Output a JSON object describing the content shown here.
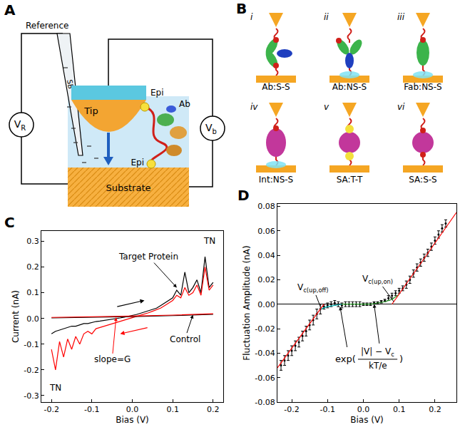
{
  "panel_a": {
    "letter": "A",
    "labels": {
      "reference": "Reference",
      "salt_bridge": "SB",
      "tip": "Tip",
      "epitope_tip": "Epi",
      "antibody": "Ab",
      "epitope_substrate": "Epi",
      "substrate": "Substrate"
    },
    "meters": [
      {
        "symbol": "V",
        "sub": "R"
      },
      {
        "symbol": "V",
        "sub": "b"
      }
    ]
  },
  "panel_b": {
    "letter": "B",
    "items": [
      {
        "numeral": "i",
        "label": "Ab:S-S"
      },
      {
        "numeral": "ii",
        "label": "Ab:NS-S"
      },
      {
        "numeral": "iii",
        "label": "Fab:NS-S"
      },
      {
        "numeral": "iv",
        "label": "Int:NS-S"
      },
      {
        "numeral": "v",
        "label": "SA:T-T"
      },
      {
        "numeral": "vi",
        "label": "SA:S-S"
      }
    ]
  },
  "chart_data": [
    {
      "letter": "C",
      "type": "line",
      "x_label": "Bias (V)",
      "y_label": "Current (nA)",
      "xlim": [
        -0.225,
        0.225
      ],
      "ylim": [
        -0.325,
        0.34
      ],
      "xticks": [
        -0.2,
        -0.1,
        {
          "value": 0,
          "label": "0.0"
        },
        0.1,
        0.2
      ],
      "yticks": [
        -0.3,
        -0.2,
        -0.1,
        {
          "value": 0,
          "label": "0.0"
        },
        0.1,
        0.2,
        0.3
      ],
      "grid": false,
      "annotations": [
        "Target Protein",
        "TN",
        "TN",
        "Control",
        "slope=G"
      ],
      "series": [
        {
          "color": "#000000",
          "line_style": "solid",
          "x": [
            -0.2,
            -0.19,
            -0.18,
            -0.17,
            -0.16,
            -0.15,
            -0.14,
            -0.13,
            -0.12,
            -0.11,
            -0.1,
            -0.09,
            -0.08,
            -0.07,
            -0.06,
            -0.05,
            -0.04,
            -0.03,
            -0.02,
            -0.01,
            0,
            0.01,
            0.02,
            0.03,
            0.04,
            0.05,
            0.06,
            0.07,
            0.08,
            0.09,
            0.1,
            0.11,
            0.12,
            0.13,
            0.14,
            0.15,
            0.16,
            0.17,
            0.18,
            0.19,
            0.2
          ],
          "values": [
            -0.06,
            -0.05,
            -0.045,
            -0.04,
            -0.035,
            -0.03,
            -0.03,
            -0.025,
            -0.02,
            -0.02,
            -0.015,
            -0.012,
            -0.01,
            -0.008,
            -0.005,
            -0.003,
            0,
            0.002,
            0.005,
            0.008,
            0.01,
            0.015,
            0.02,
            0.025,
            0.03,
            0.035,
            0.04,
            0.05,
            0.06,
            0.07,
            0.08,
            0.11,
            0.09,
            0.18,
            0.1,
            0.12,
            0.15,
            0.1,
            0.24,
            0.12,
            0.14
          ]
        },
        {
          "color": "#ff0000",
          "line_style": "solid",
          "x": [
            -0.2,
            -0.19,
            -0.18,
            -0.17,
            -0.16,
            -0.15,
            -0.14,
            -0.13,
            -0.12,
            -0.11,
            -0.1,
            -0.09,
            -0.08,
            -0.07,
            -0.06,
            -0.05,
            -0.04,
            -0.03,
            -0.02,
            -0.01,
            0,
            0.01,
            0.02,
            0.03,
            0.04,
            0.05,
            0.06,
            0.07,
            0.08,
            0.09,
            0.1,
            0.11,
            0.12,
            0.13,
            0.14,
            0.15,
            0.16,
            0.17,
            0.18,
            0.19,
            0.2
          ],
          "values": [
            -0.12,
            -0.2,
            -0.09,
            -0.15,
            -0.08,
            -0.12,
            -0.07,
            -0.1,
            -0.06,
            -0.05,
            -0.06,
            -0.04,
            -0.035,
            -0.03,
            -0.025,
            -0.02,
            -0.015,
            -0.01,
            -0.005,
            0,
            0.003,
            0.008,
            0.012,
            0.018,
            0.022,
            0.028,
            0.033,
            0.04,
            0.05,
            0.06,
            0.07,
            0.09,
            0.08,
            0.12,
            0.09,
            0.1,
            0.13,
            0.09,
            0.2,
            0.11,
            0.13
          ]
        },
        {
          "color": "#000000",
          "line_style": "solid",
          "x": [
            -0.2,
            -0.1,
            0,
            0.1,
            0.2
          ],
          "values": [
            0.002,
            0.004,
            0.007,
            0.011,
            0.016
          ]
        },
        {
          "color": "#ff0000",
          "line_style": "solid",
          "x": [
            -0.2,
            -0.1,
            0,
            0.1,
            0.2
          ],
          "values": [
            0.004,
            0.006,
            0.009,
            0.013,
            0.018
          ]
        }
      ]
    },
    {
      "letter": "D",
      "type": "scatter",
      "x_label": "Bias (V)",
      "y_label": "Fluctuation Amplitude (nA)",
      "xlim": [
        -0.24,
        0.26
      ],
      "ylim": [
        -0.08,
        0.082
      ],
      "xticks": [
        -0.2,
        -0.1,
        {
          "value": 0,
          "label": "0.0"
        },
        0.1,
        0.2
      ],
      "yticks": [
        -0.08,
        -0.06,
        -0.04,
        -0.02,
        {
          "value": 0,
          "label": "0.00"
        },
        0.02,
        0.04,
        0.06,
        0.08
      ],
      "grid": false,
      "annotations": [
        {
          "symbol": "V",
          "sub": "c(up,off)"
        },
        {
          "symbol": "V",
          "sub": "c(up,on)"
        }
      ],
      "formula": {
        "function": "exp(",
        "numerator": "|V| − V",
        "numerator_sub": "c",
        "denominator": "kT/e",
        "close": ")"
      },
      "series": [
        {
          "type": "scatter",
          "marker": "circle",
          "color": "#000000",
          "x": [
            -0.23,
            -0.22,
            -0.21,
            -0.2,
            -0.19,
            -0.18,
            -0.17,
            -0.16,
            -0.15,
            -0.14,
            -0.13,
            -0.12,
            -0.11,
            -0.1,
            -0.09,
            -0.08,
            -0.07,
            -0.06,
            -0.05,
            -0.04,
            -0.03,
            -0.02,
            -0.01,
            0,
            0.01,
            0.02,
            0.03,
            0.04,
            0.05,
            0.06,
            0.07,
            0.08,
            0.09,
            0.1,
            0.11,
            0.12,
            0.13,
            0.14,
            0.15,
            0.16,
            0.17,
            0.18,
            0.19,
            0.2,
            0.21,
            0.22,
            0.23
          ],
          "values": [
            -0.05,
            -0.046,
            -0.042,
            -0.038,
            -0.034,
            -0.031,
            -0.026,
            -0.022,
            -0.017,
            -0.013,
            -0.008,
            -0.004,
            -0.002,
            -0.001,
            0,
            0.001,
            0,
            -0.001,
            0,
            0,
            0,
            0,
            0,
            0,
            0,
            0,
            0.001,
            0.001,
            0.002,
            0.003,
            0.005,
            0.007,
            0.009,
            0.011,
            0.013,
            0.016,
            0.02,
            0.025,
            0.03,
            0.034,
            0.038,
            0.042,
            0.047,
            0.052,
            0.057,
            0.062,
            0.066
          ],
          "errors": [
            0.004,
            0.004,
            0.004,
            0.004,
            0.004,
            0.004,
            0.004,
            0.004,
            0.004,
            0.004,
            0.004,
            0.004,
            0.002,
            0.002,
            0.002,
            0.002,
            0.002,
            0.002,
            0.002,
            0.002,
            0.002,
            0.002,
            0.002,
            0.001,
            0.001,
            0.001,
            0.001,
            0.001,
            0.001,
            0.001,
            0.002,
            0.002,
            0.002,
            0.002,
            0.002,
            0.003,
            0.003,
            0.003,
            0.003,
            0.003,
            0.003,
            0.003,
            0.003,
            0.003,
            0.003,
            0.003,
            0.003
          ]
        },
        {
          "type": "line",
          "color": "#00b3b3",
          "line_style": "solid",
          "x": [
            -0.12,
            -0.1,
            -0.08,
            -0.06
          ],
          "values": [
            -0.004,
            -0.002,
            -0.001,
            0
          ]
        },
        {
          "type": "line",
          "color": "#2ca02c",
          "line_style": "solid",
          "x": [
            -0.06,
            -0.04,
            -0.02,
            0,
            0.02,
            0.04,
            0.06,
            0.08,
            0.1
          ],
          "values": [
            0,
            0,
            0,
            0,
            0,
            0.001,
            0.002,
            0.004,
            0.008
          ]
        },
        {
          "type": "line",
          "color": "#ff0000",
          "line_style": "solid",
          "x": [
            -0.24,
            -0.11
          ],
          "values": [
            -0.052,
            0
          ]
        },
        {
          "type": "line",
          "color": "#ff0000",
          "line_style": "solid",
          "x": [
            0.08,
            0.26
          ],
          "values": [
            0,
            0.075
          ]
        }
      ]
    }
  ]
}
